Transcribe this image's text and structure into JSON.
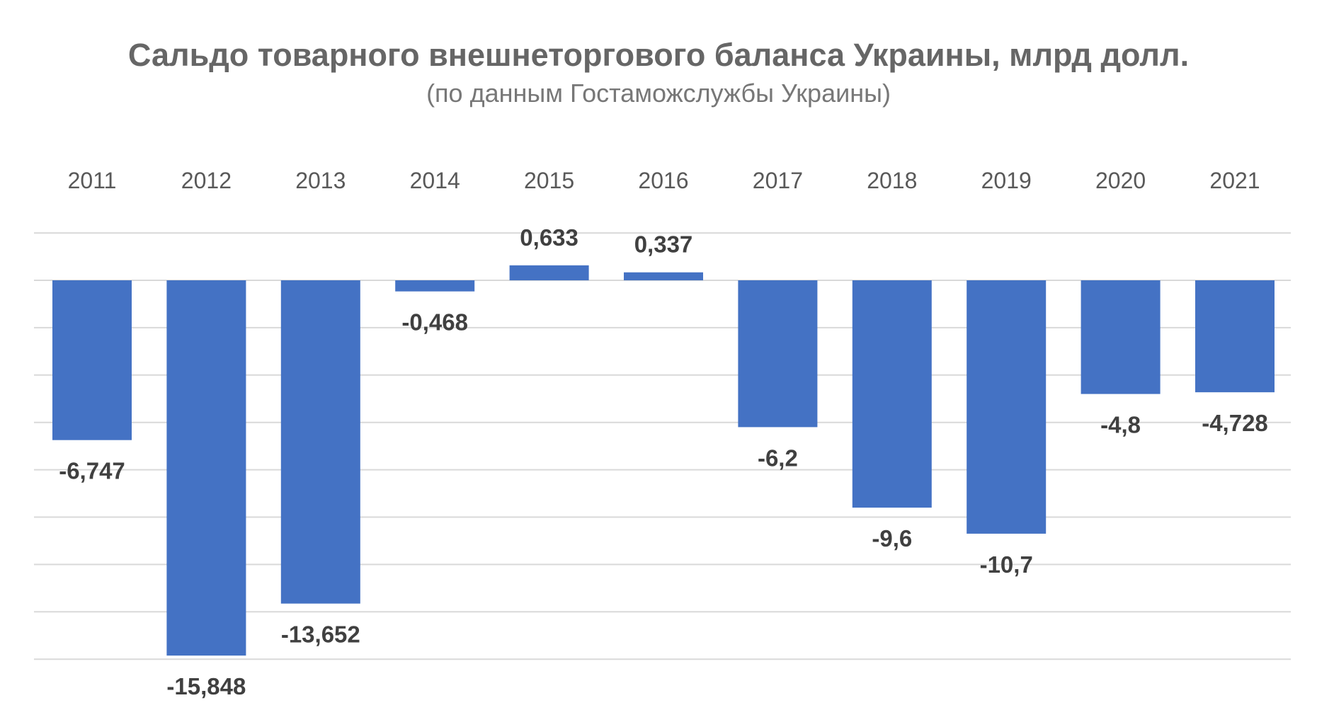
{
  "chart_data": {
    "type": "bar",
    "title": "Сальдо товарного внешнеторгового баланса Украины, млрд долл.",
    "subtitle": "(по данным Гостаможслужбы Украины)",
    "categories": [
      "2011",
      "2012",
      "2013",
      "2014",
      "2015",
      "2016",
      "2017",
      "2018",
      "2019",
      "2020",
      "2021"
    ],
    "values": [
      -6.747,
      -15.848,
      -13.652,
      -0.468,
      0.633,
      0.337,
      -6.2,
      -9.6,
      -10.7,
      -4.8,
      -4.728
    ],
    "value_labels": [
      "-6,747",
      "-15,848",
      "-13,652",
      "-0,468",
      "0,633",
      "0,337",
      "-6,2",
      "-9,6",
      "-10,7",
      "-4,8",
      "-4,728"
    ],
    "ylim": [
      -16,
      2
    ],
    "grid": true,
    "legend": "none",
    "category_axis_position": "top"
  },
  "colors": {
    "bar": "#4472C4",
    "grid": "#D9D9D9",
    "title": "#666666"
  }
}
